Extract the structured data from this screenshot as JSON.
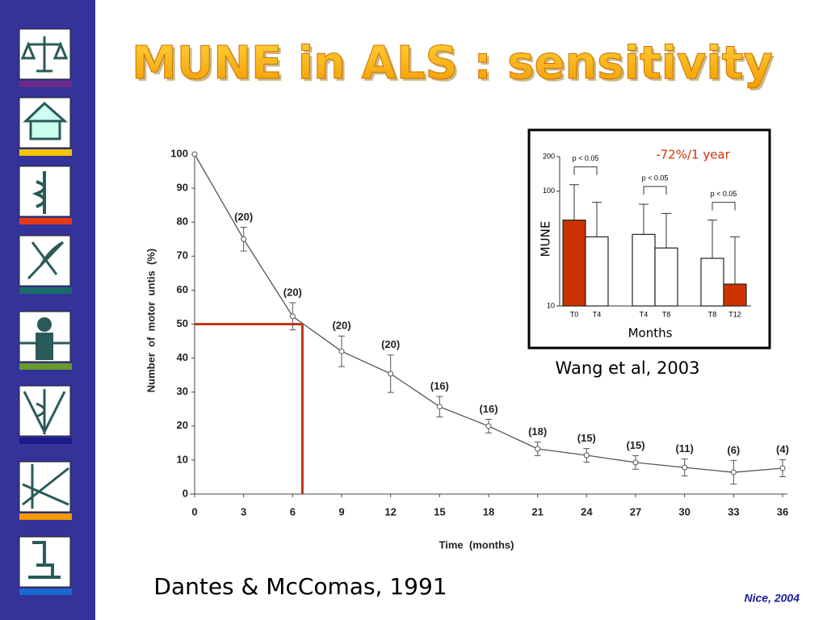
{
  "title": "MUNE in ALS : sensitivity",
  "footer": "Nice, 2004",
  "chart_data": [
    {
      "type": "line",
      "caption": "Dantes & McComas, 1991",
      "x_label": "Time  (months)",
      "y_label": "Number  of  motor  untis  (%)",
      "x": [
        0,
        3,
        6,
        9,
        12,
        15,
        18,
        21,
        24,
        27,
        30,
        33,
        36
      ],
      "values": [
        100,
        75,
        52.3,
        42,
        35.4,
        25.7,
        20,
        13.3,
        11.4,
        9.3,
        7.8,
        6.4,
        7.6
      ],
      "errors": [
        null,
        3.5,
        4,
        4.5,
        5.5,
        3,
        2,
        2,
        2,
        2,
        2.5,
        3.5,
        2.5
      ],
      "point_labels": [
        null,
        "(20)",
        "(20)",
        "(20)",
        "(20)",
        "(16)",
        "(16)",
        "(18)",
        "(15)",
        "(15)",
        "(11)",
        "(6)",
        "(4)"
      ],
      "color": "#555555",
      "xlim": [
        0,
        36
      ],
      "xticks": [
        0,
        3,
        6,
        9,
        12,
        15,
        18,
        21,
        24,
        27,
        30,
        33,
        36
      ],
      "ylim": [
        0,
        100
      ],
      "yticks": [
        0,
        10,
        20,
        30,
        40,
        50,
        60,
        70,
        80,
        90,
        100
      ],
      "reference": {
        "x": 6.6,
        "y": 50,
        "color": "#c0391b"
      }
    },
    {
      "type": "bar",
      "caption": "Wang et al, 2003",
      "annotation": "-72%/1 year",
      "annotation_color": "#cc3300",
      "x_label": "Months",
      "y_label": "MUNE",
      "categories": [
        "T0",
        "T4",
        "T4",
        "T8",
        "T8",
        "T12"
      ],
      "values": [
        56,
        40,
        42,
        32,
        26,
        15.5
      ],
      "whisker_top": [
        114,
        80,
        77,
        64,
        56,
        40
      ],
      "colors": [
        "#cc3300",
        "#ffffff",
        "#ffffff",
        "#ffffff",
        "#ffffff",
        "#cc3300"
      ],
      "p_labels": [
        "p < 0.05",
        "p < 0.05",
        "p < 0.05"
      ],
      "log_scale": true,
      "ylim": [
        10,
        200
      ],
      "yticks": [
        10,
        100,
        200
      ]
    }
  ]
}
